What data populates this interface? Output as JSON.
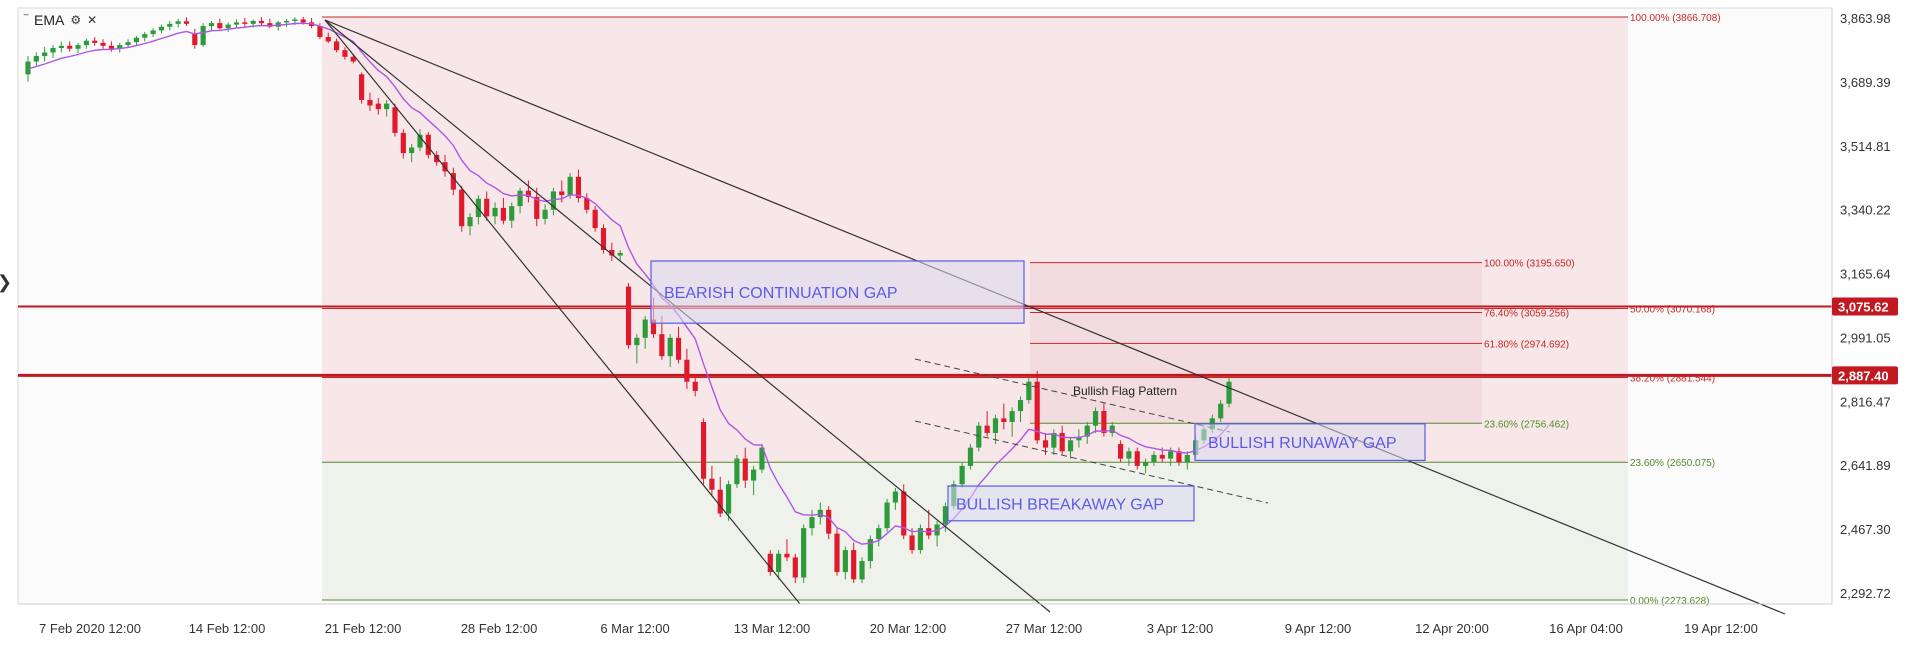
{
  "legend": {
    "indicator_label": "EMA",
    "settings_icon": "gear-icon",
    "close_icon": "close-icon",
    "menu_icon": "drag-handle-icon"
  },
  "colors": {
    "background": "#ffffff",
    "bullish_candle": "#2e9b3a",
    "bearish_candle": "#e0192d",
    "ema_line": "#b155e8",
    "fib_red": "#c62828",
    "fib_green": "#558b2f",
    "gap_box": "#5b5be6",
    "trendline": "#333333",
    "upper_zone": "#f6e3e4",
    "lower_zone": "#ecf1e9"
  },
  "chart_data": {
    "type": "candlestick",
    "ylim": [
      2200,
      3920
    ],
    "y_tick_labels": [
      "3,863.98",
      "3,689.39",
      "3,514.81",
      "3,340.22",
      "3,165.64",
      "2,991.05",
      "2,816.47",
      "2,641.89",
      "2,467.30",
      "2,292.72"
    ],
    "y_tick_values": [
      3863.98,
      3689.39,
      3514.81,
      3340.22,
      3165.64,
      2991.05,
      2816.47,
      2641.89,
      2467.3,
      2292.72
    ],
    "x_tick_labels": [
      "7 Feb 2020 12:00",
      "14 Feb 12:00",
      "21 Feb 12:00",
      "28 Feb 12:00",
      "6 Mar 12:00",
      "13 Mar 12:00",
      "20 Mar 12:00",
      "27 Mar 12:00",
      "3 Apr 12:00",
      "9 Apr 12:00",
      "12 Apr 20:00",
      "16 Apr 04:00",
      "19 Apr 12:00"
    ],
    "price_tags": [
      {
        "label": "3,075.62",
        "value": 3075.62
      },
      {
        "label": "2,887.40",
        "value": 2887.4
      }
    ],
    "candles": [
      [
        3710,
        3760,
        3690,
        3745
      ],
      [
        3745,
        3770,
        3730,
        3760
      ],
      [
        3760,
        3785,
        3745,
        3770
      ],
      [
        3770,
        3790,
        3755,
        3782
      ],
      [
        3782,
        3800,
        3770,
        3788
      ],
      [
        3788,
        3800,
        3772,
        3780
      ],
      [
        3780,
        3796,
        3768,
        3790
      ],
      [
        3790,
        3808,
        3780,
        3802
      ],
      [
        3802,
        3812,
        3788,
        3796
      ],
      [
        3796,
        3806,
        3780,
        3788
      ],
      [
        3788,
        3800,
        3772,
        3780
      ],
      [
        3780,
        3796,
        3770,
        3790
      ],
      [
        3790,
        3806,
        3782,
        3798
      ],
      [
        3798,
        3815,
        3790,
        3810
      ],
      [
        3810,
        3826,
        3800,
        3820
      ],
      [
        3820,
        3836,
        3812,
        3830
      ],
      [
        3830,
        3846,
        3822,
        3840
      ],
      [
        3840,
        3856,
        3830,
        3848
      ],
      [
        3848,
        3862,
        3838,
        3855
      ],
      [
        3855,
        3866,
        3842,
        3848
      ],
      [
        3820,
        3834,
        3780,
        3790
      ],
      [
        3790,
        3850,
        3785,
        3842
      ],
      [
        3842,
        3856,
        3830,
        3850
      ],
      [
        3850,
        3862,
        3832,
        3836
      ],
      [
        3836,
        3852,
        3826,
        3846
      ],
      [
        3846,
        3860,
        3836,
        3852
      ],
      [
        3852,
        3864,
        3840,
        3848
      ],
      [
        3848,
        3860,
        3838,
        3856
      ],
      [
        3856,
        3866,
        3842,
        3850
      ],
      [
        3850,
        3862,
        3836,
        3840
      ],
      [
        3840,
        3856,
        3830,
        3852
      ],
      [
        3852,
        3862,
        3840,
        3856
      ],
      [
        3856,
        3866,
        3845,
        3860
      ],
      [
        3860,
        3867,
        3846,
        3852
      ],
      [
        3852,
        3864,
        3836,
        3842
      ],
      [
        3842,
        3850,
        3806,
        3812
      ],
      [
        3812,
        3824,
        3796,
        3800
      ],
      [
        3800,
        3808,
        3770,
        3776
      ],
      [
        3776,
        3784,
        3750,
        3758
      ],
      [
        3758,
        3766,
        3740,
        3745
      ],
      [
        3710,
        3715,
        3630,
        3640
      ],
      [
        3640,
        3660,
        3610,
        3625
      ],
      [
        3630,
        3645,
        3600,
        3615
      ],
      [
        3615,
        3640,
        3595,
        3630
      ],
      [
        3620,
        3630,
        3540,
        3550
      ],
      [
        3550,
        3560,
        3480,
        3495
      ],
      [
        3495,
        3520,
        3470,
        3510
      ],
      [
        3510,
        3560,
        3500,
        3545
      ],
      [
        3545,
        3552,
        3480,
        3490
      ],
      [
        3490,
        3500,
        3460,
        3470
      ],
      [
        3470,
        3490,
        3430,
        3445
      ],
      [
        3440,
        3455,
        3380,
        3395
      ],
      [
        3395,
        3405,
        3280,
        3295
      ],
      [
        3295,
        3330,
        3270,
        3320
      ],
      [
        3320,
        3380,
        3300,
        3370
      ],
      [
        3370,
        3390,
        3310,
        3322
      ],
      [
        3322,
        3360,
        3300,
        3345
      ],
      [
        3345,
        3372,
        3300,
        3310
      ],
      [
        3310,
        3360,
        3290,
        3350
      ],
      [
        3350,
        3400,
        3330,
        3392
      ],
      [
        3392,
        3420,
        3360,
        3375
      ],
      [
        3375,
        3400,
        3295,
        3315
      ],
      [
        3315,
        3355,
        3300,
        3340
      ],
      [
        3340,
        3400,
        3325,
        3390
      ],
      [
        3390,
        3420,
        3360,
        3380
      ],
      [
        3380,
        3440,
        3370,
        3430
      ],
      [
        3430,
        3450,
        3360,
        3372
      ],
      [
        3372,
        3385,
        3330,
        3340
      ],
      [
        3340,
        3350,
        3280,
        3290
      ],
      [
        3290,
        3300,
        3220,
        3230
      ],
      [
        3230,
        3250,
        3200,
        3215
      ],
      [
        3215,
        3230,
        3200,
        3222
      ],
      [
        3130,
        3140,
        2960,
        2970
      ],
      [
        2970,
        3000,
        2920,
        2990
      ],
      [
        2990,
        3050,
        2960,
        3040
      ],
      [
        3040,
        3100,
        2990,
        3000
      ],
      [
        3000,
        3050,
        2930,
        2940
      ],
      [
        2940,
        3000,
        2910,
        2990
      ],
      [
        2990,
        3020,
        2920,
        2930
      ],
      [
        2930,
        2960,
        2850,
        2870
      ],
      [
        2870,
        2890,
        2830,
        2845
      ],
      [
        2760,
        2770,
        2590,
        2605
      ],
      [
        2605,
        2640,
        2560,
        2575
      ],
      [
        2575,
        2610,
        2500,
        2510
      ],
      [
        2510,
        2600,
        2490,
        2590
      ],
      [
        2590,
        2670,
        2580,
        2660
      ],
      [
        2660,
        2690,
        2580,
        2600
      ],
      [
        2600,
        2640,
        2560,
        2630
      ],
      [
        2630,
        2700,
        2620,
        2690
      ],
      [
        2400,
        2410,
        2340,
        2350
      ],
      [
        2350,
        2410,
        2330,
        2400
      ],
      [
        2400,
        2440,
        2380,
        2390
      ],
      [
        2390,
        2400,
        2320,
        2335
      ],
      [
        2335,
        2480,
        2320,
        2470
      ],
      [
        2470,
        2520,
        2450,
        2500
      ],
      [
        2500,
        2540,
        2480,
        2520
      ],
      [
        2520,
        2530,
        2440,
        2455
      ],
      [
        2455,
        2470,
        2340,
        2350
      ],
      [
        2350,
        2420,
        2330,
        2410
      ],
      [
        2410,
        2430,
        2320,
        2330
      ],
      [
        2330,
        2390,
        2320,
        2380
      ],
      [
        2380,
        2450,
        2360,
        2440
      ],
      [
        2440,
        2480,
        2420,
        2470
      ],
      [
        2470,
        2550,
        2460,
        2540
      ],
      [
        2540,
        2580,
        2520,
        2570
      ],
      [
        2570,
        2590,
        2440,
        2450
      ],
      [
        2450,
        2470,
        2400,
        2410
      ],
      [
        2410,
        2480,
        2400,
        2470
      ],
      [
        2470,
        2520,
        2440,
        2450
      ],
      [
        2450,
        2490,
        2420,
        2480
      ],
      [
        2480,
        2540,
        2460,
        2530
      ],
      [
        2530,
        2600,
        2520,
        2590
      ],
      [
        2590,
        2650,
        2580,
        2640
      ],
      [
        2640,
        2700,
        2630,
        2690
      ],
      [
        2690,
        2760,
        2680,
        2750
      ],
      [
        2750,
        2790,
        2720,
        2730
      ],
      [
        2730,
        2780,
        2700,
        2770
      ],
      [
        2770,
        2810,
        2740,
        2760
      ],
      [
        2760,
        2800,
        2720,
        2790
      ],
      [
        2790,
        2830,
        2760,
        2820
      ],
      [
        2820,
        2880,
        2810,
        2870
      ],
      [
        2870,
        2900,
        2700,
        2710
      ],
      [
        2710,
        2730,
        2670,
        2690
      ],
      [
        2690,
        2740,
        2670,
        2730
      ],
      [
        2730,
        2750,
        2670,
        2680
      ],
      [
        2680,
        2720,
        2660,
        2710
      ],
      [
        2710,
        2740,
        2690,
        2720
      ],
      [
        2720,
        2760,
        2700,
        2750
      ],
      [
        2750,
        2800,
        2730,
        2790
      ],
      [
        2790,
        2810,
        2720,
        2730
      ],
      [
        2730,
        2760,
        2720,
        2750
      ],
      [
        2700,
        2710,
        2650,
        2660
      ],
      [
        2660,
        2690,
        2640,
        2680
      ],
      [
        2680,
        2690,
        2630,
        2640
      ],
      [
        2640,
        2660,
        2620,
        2650
      ],
      [
        2650,
        2680,
        2640,
        2670
      ],
      [
        2670,
        2690,
        2650,
        2660
      ],
      [
        2660,
        2690,
        2640,
        2680
      ],
      [
        2680,
        2690,
        2640,
        2650
      ],
      [
        2650,
        2680,
        2630,
        2670
      ],
      [
        2670,
        2720,
        2660,
        2710
      ],
      [
        2710,
        2750,
        2700,
        2740
      ],
      [
        2740,
        2780,
        2730,
        2770
      ],
      [
        2770,
        2820,
        2760,
        2810
      ],
      [
        2810,
        2880,
        2800,
        2870
      ]
    ],
    "fibonacci_main": [
      {
        "label": "100.00% (3866.708)",
        "value": 3866.708,
        "color": "red"
      },
      {
        "label": "50.00% (3070.168)",
        "value": 3070.168,
        "color": "red"
      },
      {
        "label": "38.20% (2881.544)",
        "value": 2881.544,
        "color": "red"
      },
      {
        "label": "23.60% (2650.075)",
        "value": 2650.075,
        "color": "green"
      },
      {
        "label": "0.00% (2273.628)",
        "value": 2273.628,
        "color": "green"
      }
    ],
    "fibonacci_secondary": [
      {
        "label": "100.00% (3195.650)",
        "value": 3195.65,
        "color": "red"
      },
      {
        "label": "76.40% (3059.256)",
        "value": 3059.256,
        "color": "red"
      },
      {
        "label": "61.80% (2974.692)",
        "value": 2974.692,
        "color": "red"
      },
      {
        "label": "23.60% (2756.462)",
        "value": 2756.462,
        "color": "green"
      }
    ],
    "annotations": [
      {
        "label": "BEARISH CONTINUATION GAP",
        "value_top": 3200,
        "value_bottom": 3030
      },
      {
        "label": "BULLISH RUNAWAY GAP",
        "value_top": 2755,
        "value_bottom": 2655
      },
      {
        "label": "BULLISH BREAKAWAY GAP",
        "value_top": 2585,
        "value_bottom": 2490
      }
    ],
    "pattern_label": "Bullish Flag Pattern",
    "horizontal_lines": [
      3075.62,
      2887.4
    ]
  }
}
